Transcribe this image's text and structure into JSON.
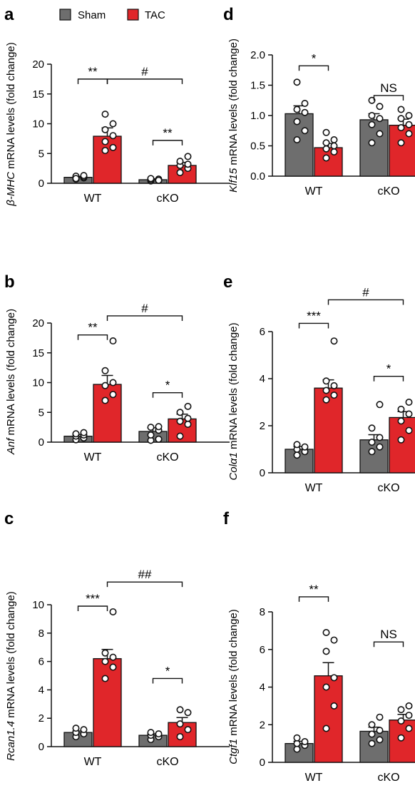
{
  "legend": {
    "items": [
      {
        "name": "Sham",
        "color": "#6e6e6e"
      },
      {
        "name": "TAC",
        "color": "#e0262a"
      }
    ]
  },
  "colors": {
    "sham": "#6e6e6e",
    "tac": "#e0262a"
  },
  "chart_data": [
    {
      "panel": "a",
      "type": "bar",
      "categories": [
        "WT",
        "cKO"
      ],
      "ylabel_italic": "β-MHC",
      "ylabel_rest": " mRNA levels (fold change)",
      "ylim": [
        0,
        20
      ],
      "yticks": [
        0,
        5,
        10,
        15,
        20
      ],
      "series": [
        {
          "name": "Sham",
          "values": [
            1.0,
            0.6
          ],
          "sem": [
            0.15,
            0.15
          ],
          "points": [
            [
              0.7,
              0.9,
              1.0,
              1.1,
              1.2,
              1.3,
              0.8
            ],
            [
              0.4,
              0.5,
              0.6,
              0.7,
              0.8,
              0.5
            ]
          ]
        },
        {
          "name": "TAC",
          "values": [
            7.9,
            3.0
          ],
          "sem": [
            1.4,
            0.5
          ],
          "points": [
            [
              5.5,
              6.0,
              7.0,
              8.0,
              9.0,
              10.0,
              11.6
            ],
            [
              1.8,
              2.5,
              3.0,
              3.2,
              3.7,
              4.5
            ]
          ]
        }
      ],
      "annotations": [
        {
          "label": "**",
          "type": "within",
          "group": 0,
          "y": 17.5
        },
        {
          "label": "**",
          "type": "within",
          "group": 1,
          "y": 7.2
        },
        {
          "label": "#",
          "type": "across",
          "y": 17.5
        }
      ]
    },
    {
      "panel": "b",
      "type": "bar",
      "categories": [
        "WT",
        "cKO"
      ],
      "ylabel_italic": "Anf",
      "ylabel_rest": " mRNA levels (fold change)",
      "ylim": [
        0,
        20
      ],
      "yticks": [
        0,
        5,
        10,
        15,
        20
      ],
      "series": [
        {
          "name": "Sham",
          "values": [
            1.0,
            1.8
          ],
          "sem": [
            0.3,
            0.6
          ],
          "points": [
            [
              0.4,
              0.7,
              1.0,
              1.2,
              1.4,
              1.6
            ],
            [
              0.3,
              0.5,
              1.2,
              2.0,
              2.5,
              2.6
            ]
          ]
        },
        {
          "name": "TAC",
          "values": [
            9.7,
            3.9
          ],
          "sem": [
            1.5,
            0.8
          ],
          "points": [
            [
              7.0,
              8.0,
              9.5,
              10.0,
              12.0,
              17.0
            ],
            [
              1.0,
              3.0,
              3.5,
              4.0,
              5.0,
              6.0
            ]
          ]
        }
      ],
      "annotations": [
        {
          "label": "**",
          "type": "within",
          "group": 0,
          "y": 18.0
        },
        {
          "label": "*",
          "type": "within",
          "group": 1,
          "y": 8.3
        },
        {
          "label": "#",
          "type": "across",
          "y": 21.2
        }
      ]
    },
    {
      "panel": "c",
      "type": "bar",
      "categories": [
        "WT",
        "cKO"
      ],
      "ylabel_italic": "Rcan1.4",
      "ylabel_rest": " mRNA levels (fold change)",
      "ylim": [
        0,
        10
      ],
      "yticks": [
        0,
        2,
        4,
        6,
        8,
        10
      ],
      "series": [
        {
          "name": "Sham",
          "values": [
            1.0,
            0.8
          ],
          "sem": [
            0.1,
            0.1
          ],
          "points": [
            [
              0.7,
              0.9,
              1.0,
              1.2,
              1.3
            ],
            [
              0.5,
              0.7,
              0.8,
              0.9,
              1.0
            ]
          ]
        },
        {
          "name": "TAC",
          "values": [
            6.2,
            1.7
          ],
          "sem": [
            0.65,
            0.35
          ],
          "points": [
            [
              4.8,
              5.6,
              6.0,
              6.3,
              6.6,
              9.5
            ],
            [
              0.7,
              1.2,
              1.6,
              2.4,
              2.6
            ]
          ]
        }
      ],
      "annotations": [
        {
          "label": "***",
          "type": "within",
          "group": 0,
          "y": 9.9
        },
        {
          "label": "*",
          "type": "within",
          "group": 1,
          "y": 4.8
        },
        {
          "label": "##",
          "type": "across",
          "y": 11.6
        }
      ]
    },
    {
      "panel": "d",
      "type": "bar",
      "categories": [
        "WT",
        "cKO"
      ],
      "ylabel_italic": "Klf15",
      "ylabel_rest": " mRNA levels (fold change)",
      "ylim": [
        0,
        2.0
      ],
      "yticks": [
        0.0,
        0.5,
        1.0,
        1.5,
        2.0
      ],
      "series": [
        {
          "name": "Sham",
          "values": [
            1.03,
            0.93
          ],
          "sem": [
            0.13,
            0.1
          ],
          "points": [
            [
              0.6,
              0.75,
              0.9,
              1.05,
              1.1,
              1.2,
              1.55
            ],
            [
              0.55,
              0.7,
              0.85,
              0.95,
              1.0,
              1.15,
              1.25
            ]
          ]
        },
        {
          "name": "TAC",
          "values": [
            0.47,
            0.84
          ],
          "sem": [
            0.07,
            0.1
          ],
          "points": [
            [
              0.3,
              0.4,
              0.45,
              0.5,
              0.55,
              0.6,
              0.72
            ],
            [
              0.55,
              0.7,
              0.8,
              0.85,
              0.95,
              1.0,
              1.1
            ]
          ]
        }
      ],
      "annotations": [
        {
          "label": "*",
          "type": "within",
          "group": 0,
          "y": 1.82
        },
        {
          "label": "NS",
          "type": "within",
          "group": 1,
          "y": 1.33
        }
      ]
    },
    {
      "panel": "e",
      "type": "bar",
      "categories": [
        "WT",
        "cKO"
      ],
      "ylabel_italic": "Colα1",
      "ylabel_rest": " mRNA levels (fold change)",
      "ylim": [
        0,
        6
      ],
      "yticks": [
        0,
        2,
        4,
        6
      ],
      "series": [
        {
          "name": "Sham",
          "values": [
            1.0,
            1.4
          ],
          "sem": [
            0.12,
            0.22
          ],
          "points": [
            [
              0.75,
              0.9,
              1.0,
              1.1,
              1.2
            ],
            [
              0.9,
              1.1,
              1.3,
              1.5,
              1.9,
              2.9
            ]
          ]
        },
        {
          "name": "TAC",
          "values": [
            3.6,
            2.35
          ],
          "sem": [
            0.35,
            0.25
          ],
          "points": [
            [
              3.1,
              3.3,
              3.5,
              3.7,
              3.9,
              5.6
            ],
            [
              1.4,
              1.8,
              2.2,
              2.5,
              2.7,
              3.0
            ]
          ]
        }
      ],
      "annotations": [
        {
          "label": "***",
          "type": "within",
          "group": 0,
          "y": 6.35
        },
        {
          "label": "*",
          "type": "within",
          "group": 1,
          "y": 4.1
        },
        {
          "label": "#",
          "type": "across",
          "y": 7.35
        }
      ]
    },
    {
      "panel": "f",
      "type": "bar",
      "categories": [
        "WT",
        "cKO"
      ],
      "ylabel_italic": "Ctgf1",
      "ylabel_rest": " mRNA levels (fold change)",
      "ylim": [
        0,
        8
      ],
      "yticks": [
        0,
        2,
        4,
        6,
        8
      ],
      "series": [
        {
          "name": "Sham",
          "values": [
            1.0,
            1.65
          ],
          "sem": [
            0.12,
            0.22
          ],
          "points": [
            [
              0.7,
              0.9,
              1.0,
              1.1,
              1.3
            ],
            [
              1.0,
              1.2,
              1.5,
              1.7,
              2.0,
              2.4
            ]
          ]
        },
        {
          "name": "TAC",
          "values": [
            4.6,
            2.25
          ],
          "sem": [
            0.7,
            0.3
          ],
          "points": [
            [
              1.8,
              3.0,
              4.0,
              4.5,
              5.9,
              6.5,
              6.9
            ],
            [
              1.3,
              1.8,
              2.2,
              2.5,
              2.8,
              3.0
            ]
          ]
        }
      ],
      "annotations": [
        {
          "label": "**",
          "type": "within",
          "group": 0,
          "y": 8.8
        },
        {
          "label": "NS",
          "type": "within",
          "group": 1,
          "y": 6.4
        }
      ]
    }
  ]
}
